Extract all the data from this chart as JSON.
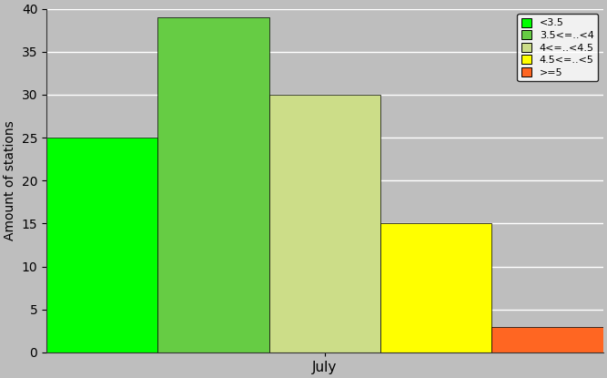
{
  "bars": [
    {
      "label": "<3.5",
      "value": 25,
      "color": "#00ff00"
    },
    {
      "label": "3.5<=..<4",
      "value": 39,
      "color": "#66cc44"
    },
    {
      "label": "4<=..<4.5",
      "value": 30,
      "color": "#ccdd88"
    },
    {
      "label": "4.5<=..<5",
      "value": 15,
      "color": "#ffff00"
    },
    {
      "label": ">=5",
      "value": 3,
      "color": "#ff6622"
    }
  ],
  "ylabel": "Amount of stations",
  "xlabel": "July",
  "ylim": [
    0,
    40
  ],
  "yticks": [
    0,
    5,
    10,
    15,
    20,
    25,
    30,
    35,
    40
  ],
  "background_color": "#bebebe",
  "plot_bg_color": "#bebebe",
  "grid_color": "#ffffff",
  "legend_fontsize": 8,
  "ylabel_fontsize": 10
}
